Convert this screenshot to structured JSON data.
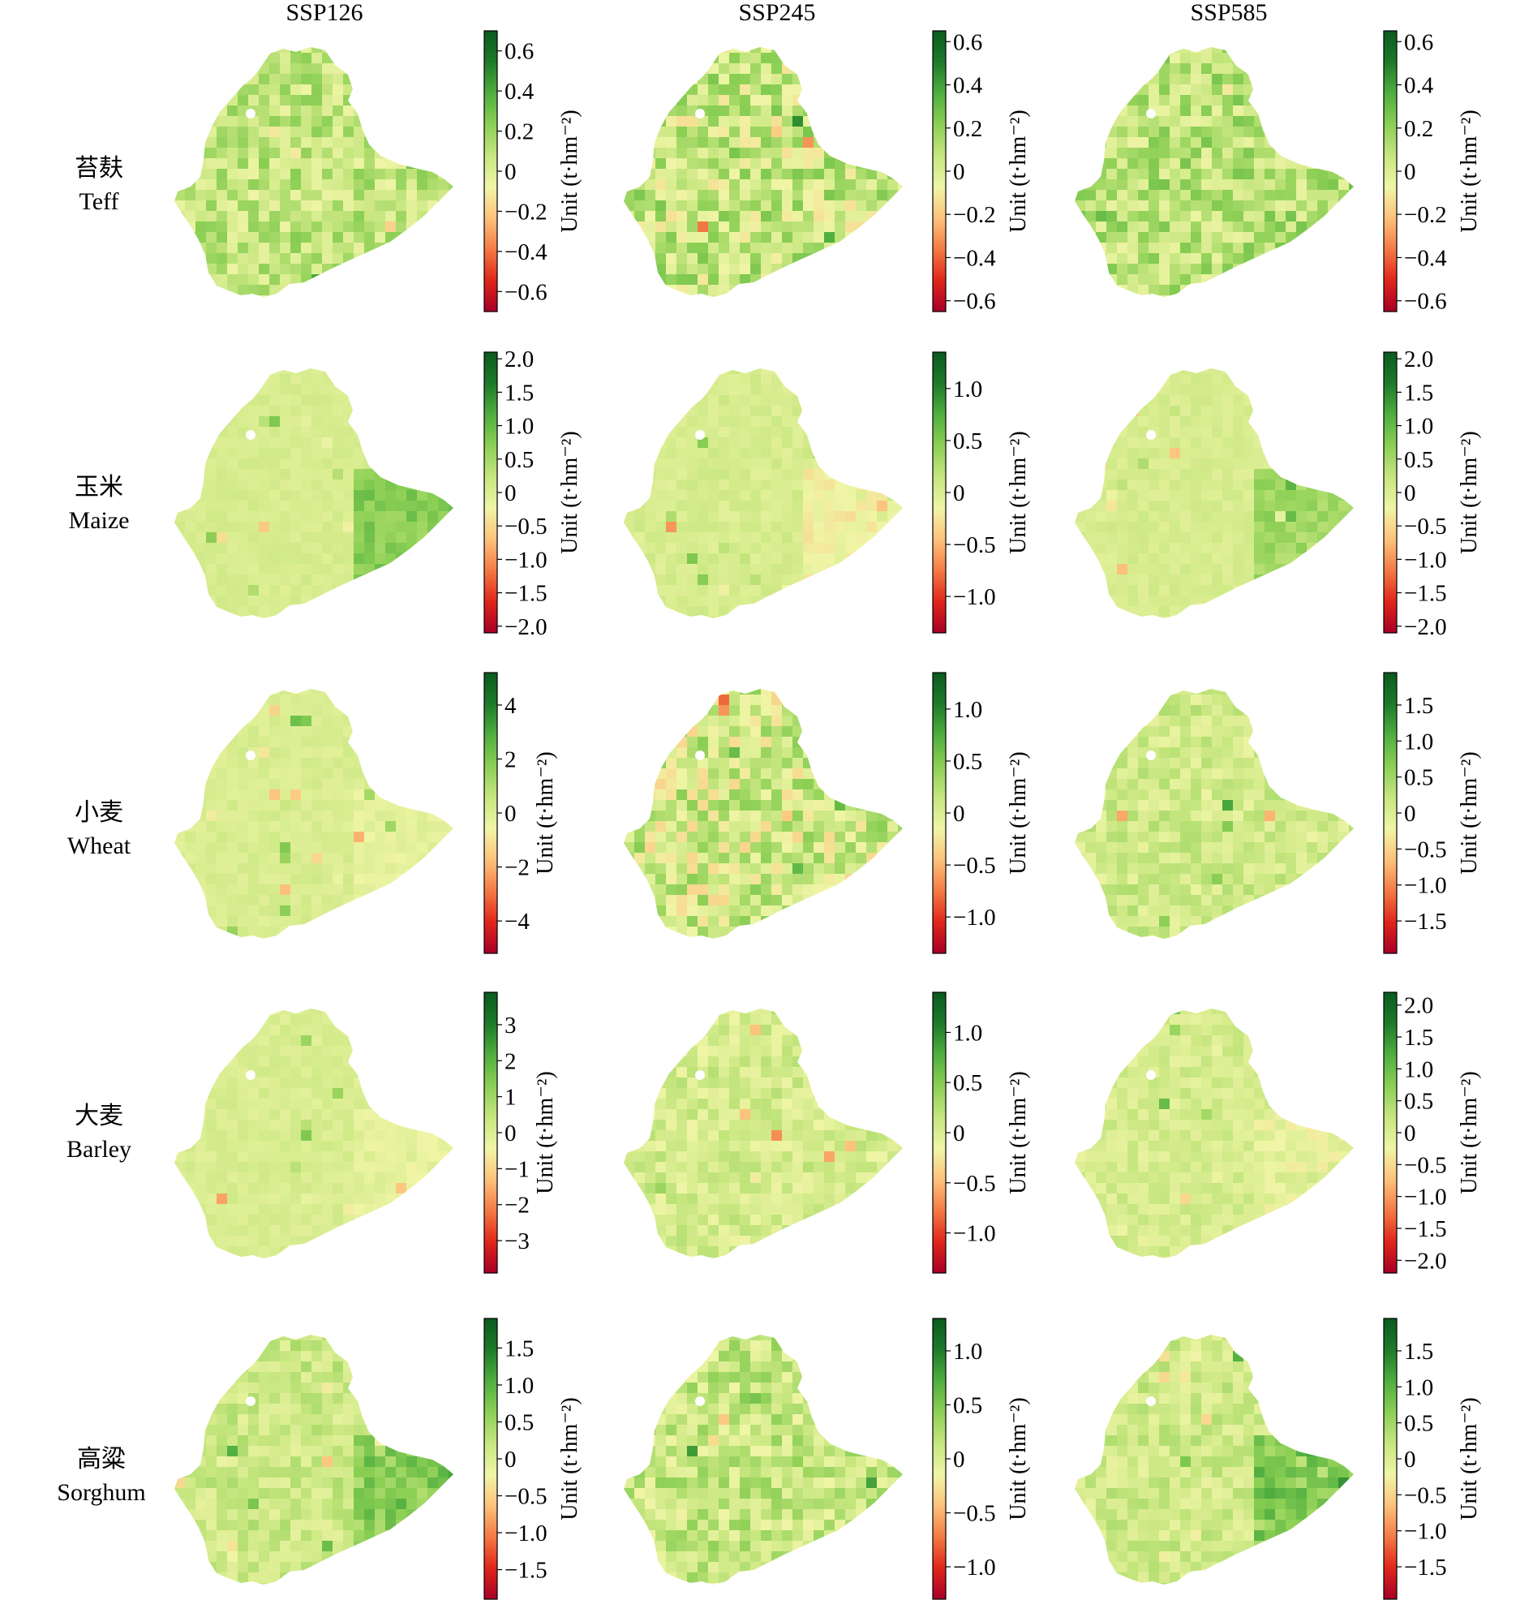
{
  "chart_data": {
    "type": "heatmap",
    "scenarios": [
      "SSP126",
      "SSP245",
      "SSP585"
    ],
    "crops": [
      {
        "cn": "苔麸",
        "en": "Teff"
      },
      {
        "cn": "玉米",
        "en": "Maize"
      },
      {
        "cn": "小麦",
        "en": "Wheat"
      },
      {
        "cn": "大麦",
        "en": "Barley"
      },
      {
        "cn": "高粱",
        "en": "Sorghum"
      }
    ],
    "colorbar_label": "Unit (t·hm⁻²)",
    "colormap": [
      "#a50026",
      "#e0261b",
      "#f47a44",
      "#fdc27c",
      "#f0f5a6",
      "#c6e67f",
      "#8ccf55",
      "#4fae3f",
      "#1d7a2a",
      "#0b5a1e"
    ],
    "panels": [
      [
        {
          "vmin": -0.7,
          "vmax": 0.7,
          "ticks": [
            0.6,
            0.4,
            0.2,
            0,
            -0.2,
            -0.4,
            -0.6
          ],
          "tick_labels": [
            "0.6",
            "0.4",
            "0.2",
            "0",
            "−0.2",
            "−0.4",
            "−0.6"
          ]
        },
        {
          "vmin": -0.65,
          "vmax": 0.65,
          "ticks": [
            0.6,
            0.4,
            0.2,
            0,
            -0.2,
            -0.4,
            -0.6
          ],
          "tick_labels": [
            "0.6",
            "0.4",
            "0.2",
            "0",
            "−0.2",
            "−0.4",
            "−0.6"
          ]
        },
        {
          "vmin": -0.65,
          "vmax": 0.65,
          "ticks": [
            0.6,
            0.4,
            0.2,
            0,
            -0.2,
            -0.4,
            -0.6
          ],
          "tick_labels": [
            "0.6",
            "0.4",
            "0.2",
            "0",
            "−0.2",
            "−0.4",
            "−0.6"
          ]
        }
      ],
      [
        {
          "vmin": -2.1,
          "vmax": 2.1,
          "ticks": [
            2.0,
            1.5,
            1.0,
            0.5,
            0,
            -0.5,
            -1.0,
            -1.5,
            -2.0
          ],
          "tick_labels": [
            "2.0",
            "1.5",
            "1.0",
            "0.5",
            "0",
            "−0.5",
            "−1.0",
            "−1.5",
            "−2.0"
          ]
        },
        {
          "vmin": -1.35,
          "vmax": 1.35,
          "ticks": [
            1.0,
            0.5,
            0,
            -0.5,
            -1.0
          ],
          "tick_labels": [
            "1.0",
            "0.5",
            "0",
            "−0.5",
            "−1.0"
          ]
        },
        {
          "vmin": -2.1,
          "vmax": 2.1,
          "ticks": [
            2.0,
            1.5,
            1.0,
            0.5,
            0,
            -0.5,
            -1.0,
            -1.5,
            -2.0
          ],
          "tick_labels": [
            "2.0",
            "1.5",
            "1.0",
            "0.5",
            "0",
            "−0.5",
            "−1.0",
            "−1.5",
            "−2.0"
          ]
        }
      ],
      [
        {
          "vmin": -5.2,
          "vmax": 5.2,
          "ticks": [
            4,
            2,
            0,
            -2,
            -4
          ],
          "tick_labels": [
            "4",
            "2",
            "0",
            "−2",
            "−4"
          ]
        },
        {
          "vmin": -1.35,
          "vmax": 1.35,
          "ticks": [
            1.0,
            0.5,
            0,
            -0.5,
            -1.0
          ],
          "tick_labels": [
            "1.0",
            "0.5",
            "0",
            "−0.5",
            "−1.0"
          ]
        },
        {
          "vmin": -1.95,
          "vmax": 1.95,
          "ticks": [
            1.5,
            1.0,
            0.5,
            0,
            -0.5,
            -1.0,
            -1.5
          ],
          "tick_labels": [
            "1.5",
            "1.0",
            "0.5",
            "0",
            "−0.5",
            "−1.0",
            "−1.5"
          ]
        }
      ],
      [
        {
          "vmin": -3.9,
          "vmax": 3.9,
          "ticks": [
            3,
            2,
            1,
            0,
            -1,
            -2,
            -3
          ],
          "tick_labels": [
            "3",
            "2",
            "1",
            "0",
            "−1",
            "−2",
            "−3"
          ]
        },
        {
          "vmin": -1.4,
          "vmax": 1.4,
          "ticks": [
            1.0,
            0.5,
            0,
            -0.5,
            -1.0
          ],
          "tick_labels": [
            "1.0",
            "0.5",
            "0",
            "−0.5",
            "−1.0"
          ]
        },
        {
          "vmin": -2.2,
          "vmax": 2.2,
          "ticks": [
            2.0,
            1.5,
            1.0,
            0.5,
            0,
            -0.5,
            -1.0,
            -1.5,
            -2.0
          ],
          "tick_labels": [
            "2.0",
            "1.5",
            "1.0",
            "0.5",
            "0",
            "−0.5",
            "−1.0",
            "−1.5",
            "−2.0"
          ]
        }
      ],
      [
        {
          "vmin": -1.9,
          "vmax": 1.9,
          "ticks": [
            1.5,
            1.0,
            0.5,
            0,
            -0.5,
            -1.0,
            -1.5
          ],
          "tick_labels": [
            "1.5",
            "1.0",
            "0.5",
            "0",
            "−0.5",
            "−1.0",
            "−1.5"
          ]
        },
        {
          "vmin": -1.3,
          "vmax": 1.3,
          "ticks": [
            1.0,
            0.5,
            0,
            -0.5,
            -1.0
          ],
          "tick_labels": [
            "1.0",
            "0.5",
            "0",
            "−0.5",
            "−1.0"
          ]
        },
        {
          "vmin": -1.95,
          "vmax": 1.95,
          "ticks": [
            1.5,
            1.0,
            0.5,
            0,
            -0.5,
            -1.0,
            -1.5
          ],
          "tick_labels": [
            "1.5",
            "1.0",
            "0.5",
            "0",
            "−0.5",
            "−1.0",
            "−1.5"
          ]
        }
      ]
    ]
  }
}
